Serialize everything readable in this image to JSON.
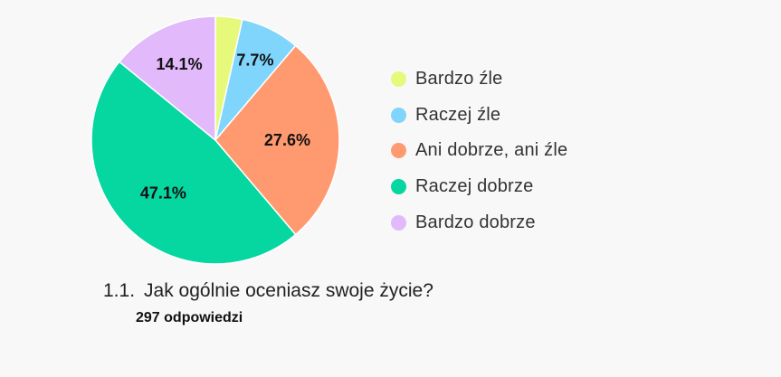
{
  "question": {
    "number": "1.1.",
    "text": "Jak ogólnie oceniasz swoje życie?",
    "responses": "297 odpowiedzi"
  },
  "chart_data": {
    "type": "pie",
    "title": "",
    "categories": [
      "Bardzo źle",
      "Raczej źle",
      "Ani dobrze, ani źle",
      "Raczej dobrze",
      "Bardzo dobrze"
    ],
    "values": [
      3.5,
      7.7,
      27.6,
      47.1,
      14.1
    ],
    "data_labels": [
      "",
      "7.7%",
      "27.6%",
      "47.1%",
      "14.1%"
    ],
    "colors": [
      "#e6f97a",
      "#7fd5fb",
      "#ff9a70",
      "#06d6a0",
      "#e2b9fb"
    ],
    "legend_placement": "right",
    "start": "top",
    "direction": "clockwise"
  },
  "legend": {
    "items": [
      {
        "label": "Bardzo źle",
        "color": "#e6f97a"
      },
      {
        "label": "Raczej źle",
        "color": "#7fd5fb"
      },
      {
        "label": "Ani dobrze, ani źle",
        "color": "#ff9a70"
      },
      {
        "label": "Raczej dobrze",
        "color": "#06d6a0"
      },
      {
        "label": "Bardzo dobrze",
        "color": "#e2b9fb"
      }
    ]
  }
}
